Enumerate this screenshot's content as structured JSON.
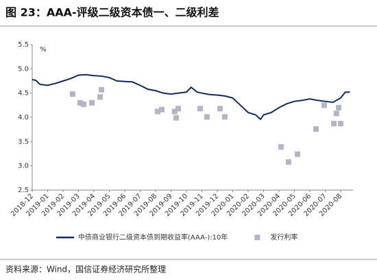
{
  "chart_data": {
    "type": "line",
    "title": "图 23：AAA-评级二级资本债一、二级利差",
    "unit": "%",
    "source": "资料来源：Wind，国信证券经济研究所整理",
    "xlim": [
      0,
      20.8
    ],
    "xticks": [
      {
        "value": 0,
        "label": "2018-12"
      },
      {
        "value": 1,
        "label": "2019-01"
      },
      {
        "value": 2,
        "label": "2019-02"
      },
      {
        "value": 3,
        "label": "2019-03"
      },
      {
        "value": 4,
        "label": "2019-04"
      },
      {
        "value": 5,
        "label": "2019-05"
      },
      {
        "value": 6,
        "label": "2019-06"
      },
      {
        "value": 7,
        "label": "2019-07"
      },
      {
        "value": 8,
        "label": "2019-08"
      },
      {
        "value": 9,
        "label": "2019-09"
      },
      {
        "value": 10,
        "label": "2019-10"
      },
      {
        "value": 11,
        "label": "2019-11"
      },
      {
        "value": 12,
        "label": "2019-12"
      },
      {
        "value": 13,
        "label": "2020-01"
      },
      {
        "value": 14,
        "label": "2020-02"
      },
      {
        "value": 15,
        "label": "2020-03"
      },
      {
        "value": 16,
        "label": "2020-04"
      },
      {
        "value": 17,
        "label": "2020-05"
      },
      {
        "value": 18,
        "label": "2020-06"
      },
      {
        "value": 19,
        "label": "2020-07"
      },
      {
        "value": 20,
        "label": "2020-08"
      }
    ],
    "ylim": [
      2.5,
      5.5
    ],
    "yticks": [
      2.5,
      {
        "value": 3,
        "label": "3.0"
      },
      3.5,
      {
        "value": 4,
        "label": "4.0"
      },
      4.5,
      {
        "value": 5,
        "label": "5.0"
      },
      5.5
    ],
    "series": [
      {
        "name": "中债商业银行二级资本债到期收益率(AAA-):10年",
        "kind": "line",
        "color": "#0d2a5a",
        "x": [
          0,
          0.25,
          0.5,
          1,
          1.5,
          2,
          2.5,
          3,
          3.5,
          4,
          4.5,
          5,
          5.5,
          6,
          6.5,
          7,
          7.5,
          8,
          8.5,
          9,
          9.5,
          10,
          10.3,
          10.7,
          11,
          11.5,
          12,
          12.5,
          13,
          13.5,
          14,
          14.5,
          14.8,
          15,
          15.5,
          16,
          16.5,
          17,
          17.5,
          18,
          18.5,
          19,
          19.5,
          20,
          20.3,
          20.6
        ],
        "values": [
          4.78,
          4.76,
          4.68,
          4.66,
          4.7,
          4.75,
          4.8,
          4.87,
          4.88,
          4.86,
          4.85,
          4.82,
          4.75,
          4.74,
          4.73,
          4.66,
          4.58,
          4.55,
          4.5,
          4.48,
          4.5,
          4.52,
          4.62,
          4.52,
          4.5,
          4.47,
          4.46,
          4.44,
          4.4,
          4.25,
          4.1,
          4.05,
          3.96,
          4.05,
          4.1,
          4.2,
          4.28,
          4.33,
          4.35,
          4.38,
          4.35,
          4.33,
          4.31,
          4.4,
          4.52,
          4.52
        ]
      },
      {
        "name": "发行利率",
        "kind": "scatter",
        "color": "#b4b4c8",
        "x": [
          2.62,
          3.11,
          3.33,
          3.87,
          4.4,
          4.49,
          8.13,
          8.4,
          9.24,
          9.33,
          9.47,
          10.89,
          11.33,
          12.18,
          12.49,
          16.13,
          16.62,
          17.2,
          18.4,
          18.93,
          19.56,
          19.73,
          19.87,
          20.0
        ],
        "values": [
          4.48,
          4.3,
          4.27,
          4.3,
          4.42,
          4.57,
          4.12,
          4.16,
          4.12,
          3.99,
          4.18,
          4.18,
          4.01,
          4.18,
          4.01,
          3.39,
          3.08,
          3.24,
          3.76,
          4.25,
          3.87,
          4.08,
          4.2,
          3.87
        ]
      }
    ]
  }
}
